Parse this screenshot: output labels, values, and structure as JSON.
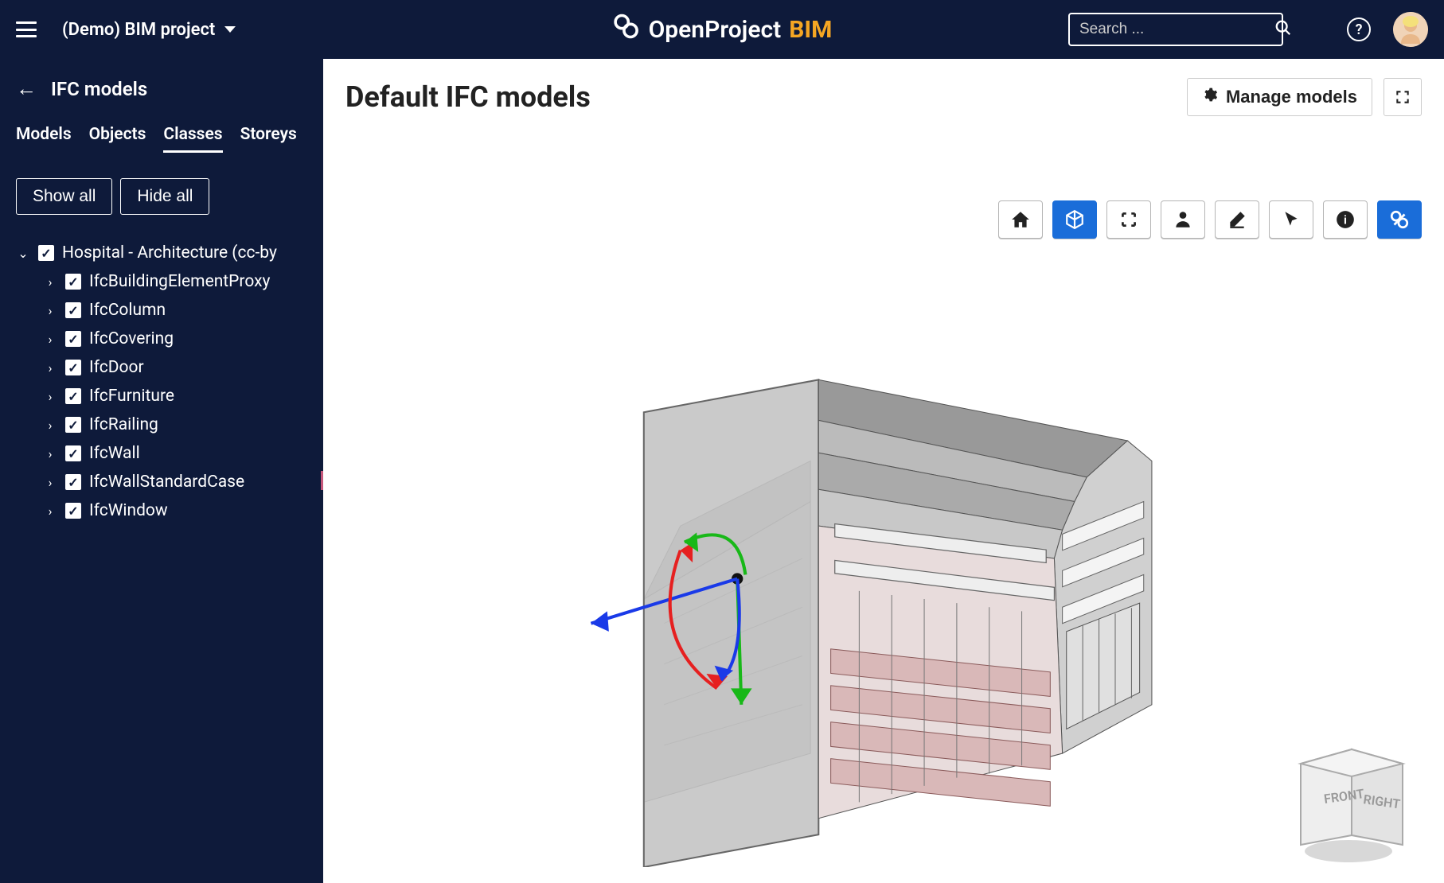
{
  "topbar": {
    "project_name": "(Demo) BIM project",
    "brand_main": "OpenProject",
    "brand_suffix": "BIM",
    "search_placeholder": "Search ..."
  },
  "sidebar": {
    "title": "IFC models",
    "tabs": [
      {
        "label": "Models",
        "active": false
      },
      {
        "label": "Objects",
        "active": false
      },
      {
        "label": "Classes",
        "active": true
      },
      {
        "label": "Storeys",
        "active": false
      }
    ],
    "show_all": "Show all",
    "hide_all": "Hide all",
    "tree": {
      "root_label": "Hospital - Architecture (cc-by",
      "children": [
        {
          "label": "IfcBuildingElementProxy"
        },
        {
          "label": "IfcColumn"
        },
        {
          "label": "IfcCovering"
        },
        {
          "label": "IfcDoor"
        },
        {
          "label": "IfcFurniture"
        },
        {
          "label": "IfcRailing"
        },
        {
          "label": "IfcWall"
        },
        {
          "label": "IfcWallStandardCase"
        },
        {
          "label": "IfcWindow"
        }
      ]
    }
  },
  "main": {
    "title": "Default IFC models",
    "manage_label": "Manage models"
  },
  "toolbar": [
    {
      "name": "home-icon",
      "active": false
    },
    {
      "name": "cube-icon",
      "active": true
    },
    {
      "name": "fit-icon",
      "active": false
    },
    {
      "name": "person-icon",
      "active": false
    },
    {
      "name": "eraser-icon",
      "active": false
    },
    {
      "name": "cursor-icon",
      "active": false
    },
    {
      "name": "info-icon",
      "active": false
    },
    {
      "name": "section-icon",
      "active": true
    }
  ],
  "nav_cube": {
    "front_label": "FRONT",
    "right_label": "RIGHT"
  },
  "gizmo": {
    "x_color": "#e62020",
    "y_color": "#18b818",
    "z_color": "#1a3ae8"
  },
  "colors": {
    "topbar_bg": "#0e1a3a",
    "accent_orange": "#f5a623",
    "tool_active": "#1a6dd9"
  }
}
